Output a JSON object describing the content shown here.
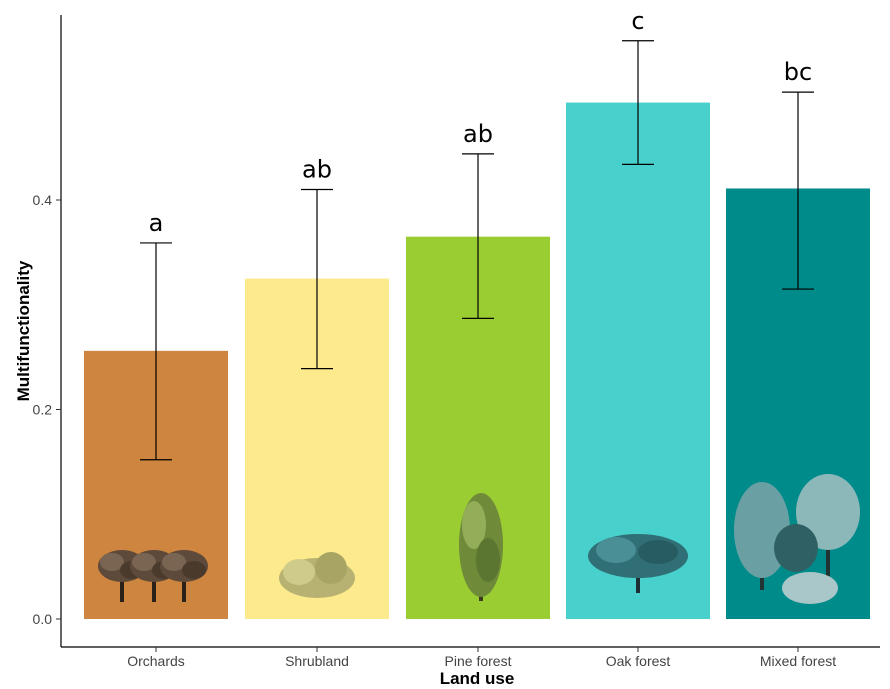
{
  "chart_data": {
    "type": "bar",
    "title": "",
    "xlabel": "Land use",
    "ylabel": "Multifunctionality",
    "ylim": [
      0,
      0.55
    ],
    "yticks": [
      "0.0",
      "0.2",
      "0.4"
    ],
    "grid": false,
    "legend": "none",
    "categories": [
      "Orchards",
      "Shrubland",
      "Pine forest",
      "Oak forest",
      "Mixed forest"
    ],
    "values": [
      0.256,
      0.325,
      0.365,
      0.493,
      0.411
    ],
    "error_lower": [
      0.152,
      0.239,
      0.287,
      0.434,
      0.315
    ],
    "error_upper": [
      0.359,
      0.41,
      0.444,
      0.552,
      0.503
    ],
    "significance_labels": [
      "a",
      "ab",
      "ab",
      "c",
      "bc"
    ],
    "colors": [
      "#CD853F",
      "#FCEA8C",
      "#9ACD32",
      "#48D1CC",
      "#008B8B"
    ],
    "tree_icons": [
      "olive-tree-icon",
      "shrub-icon",
      "pine-tree-icon",
      "oak-tree-icon",
      "mixed-forest-icon"
    ]
  }
}
